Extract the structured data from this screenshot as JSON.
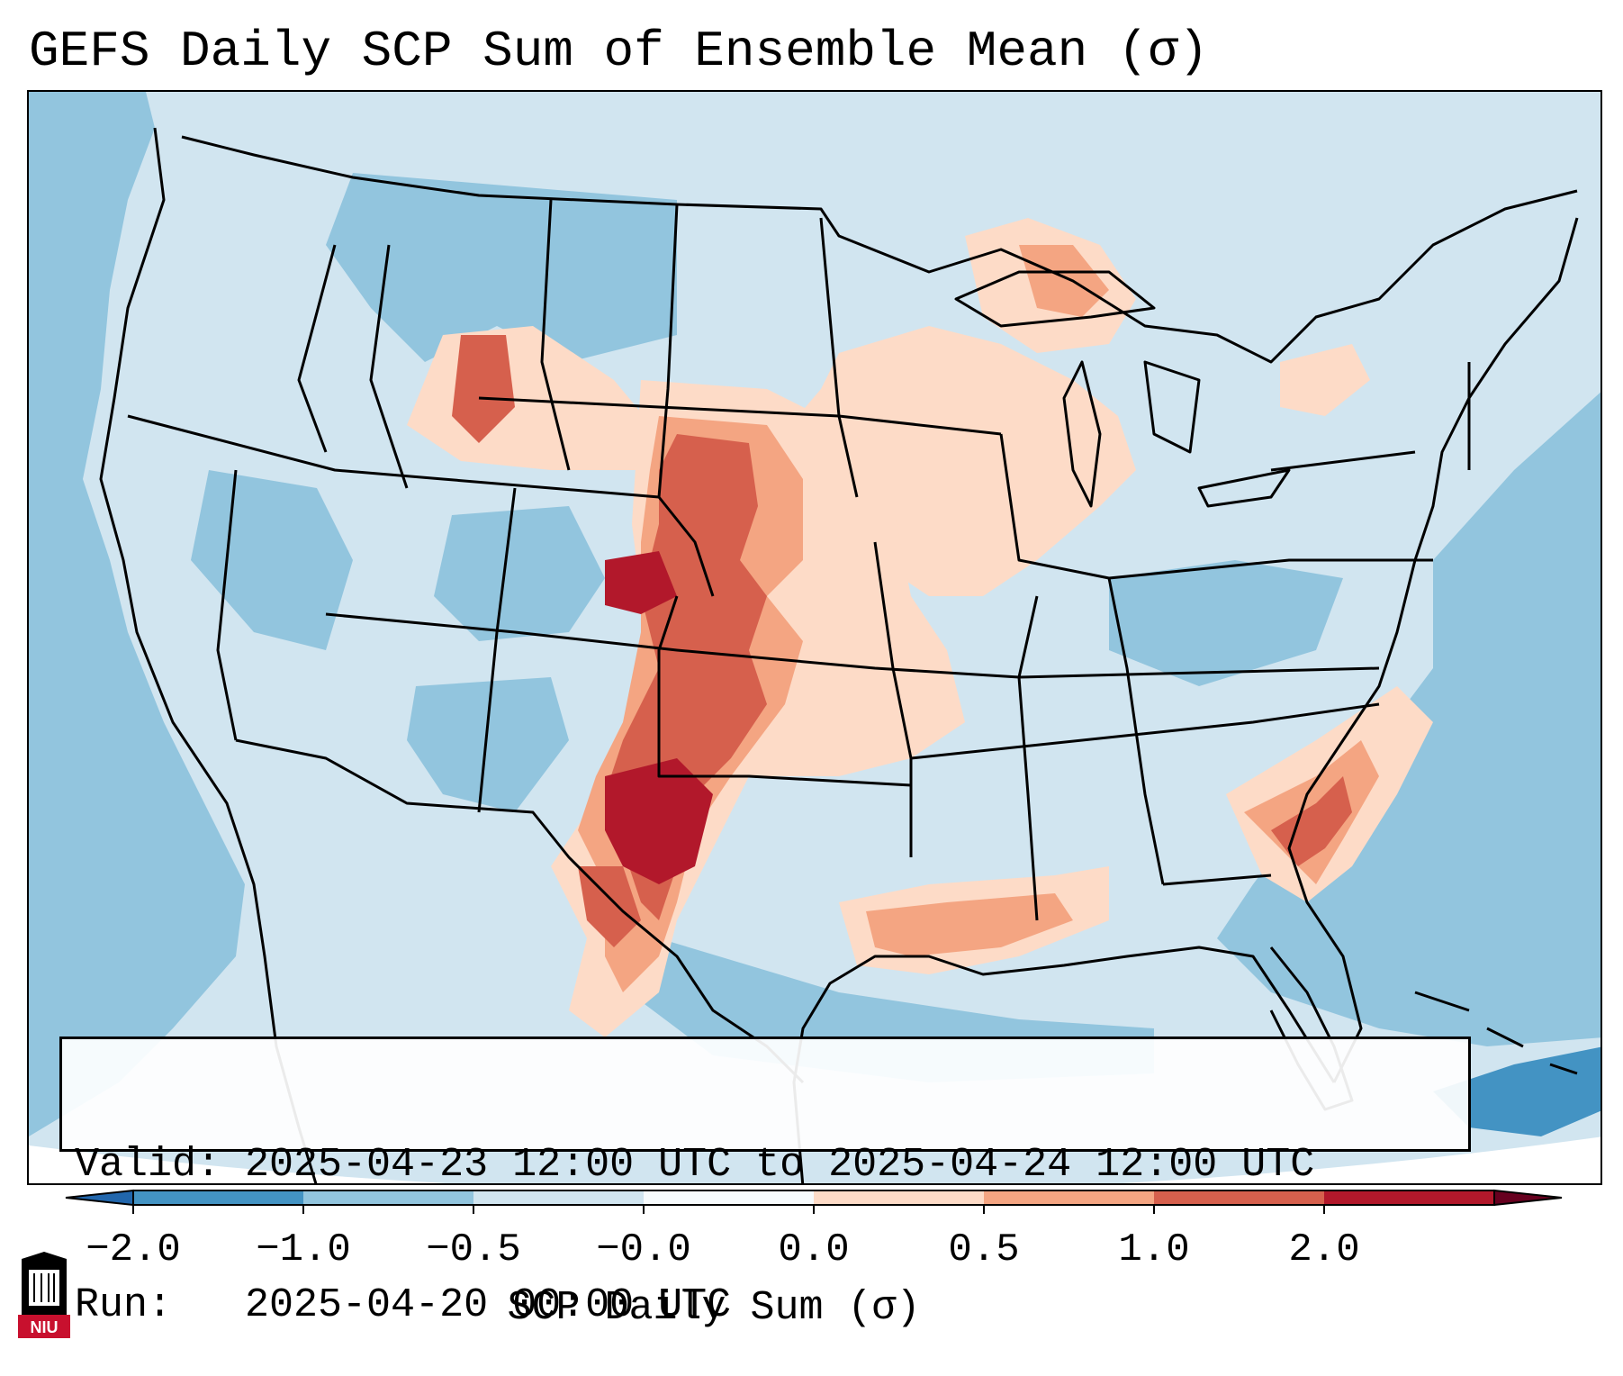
{
  "title": "GEFS Daily SCP Sum of Ensemble Mean (σ)",
  "info": {
    "valid_line": "Valid: 2025-04-23 12:00 UTC to 2025-04-24 12:00 UTC",
    "run_line": "Run:   2025-04-20 00:00 UTC"
  },
  "colorbar": {
    "label": "SCP Daily Sum (σ)",
    "tick_labels": [
      "−2.0",
      "−1.0",
      "−0.5",
      "−0.0",
      "0.0",
      "0.5",
      "1.0",
      "2.0"
    ],
    "colors": [
      "#4393c3",
      "#92c5de",
      "#d1e5f0",
      "#f7fbfd",
      "#fddbc7",
      "#f4a582",
      "#d6604d",
      "#b2182b"
    ]
  },
  "logo": {
    "text": "NIU",
    "color": "#c8102e"
  },
  "map": {
    "background_color": "#d1e5f0",
    "ocean_color": "#92c5de",
    "region": "Contiguous United States",
    "projection_edge_color": "#ffffff"
  }
}
